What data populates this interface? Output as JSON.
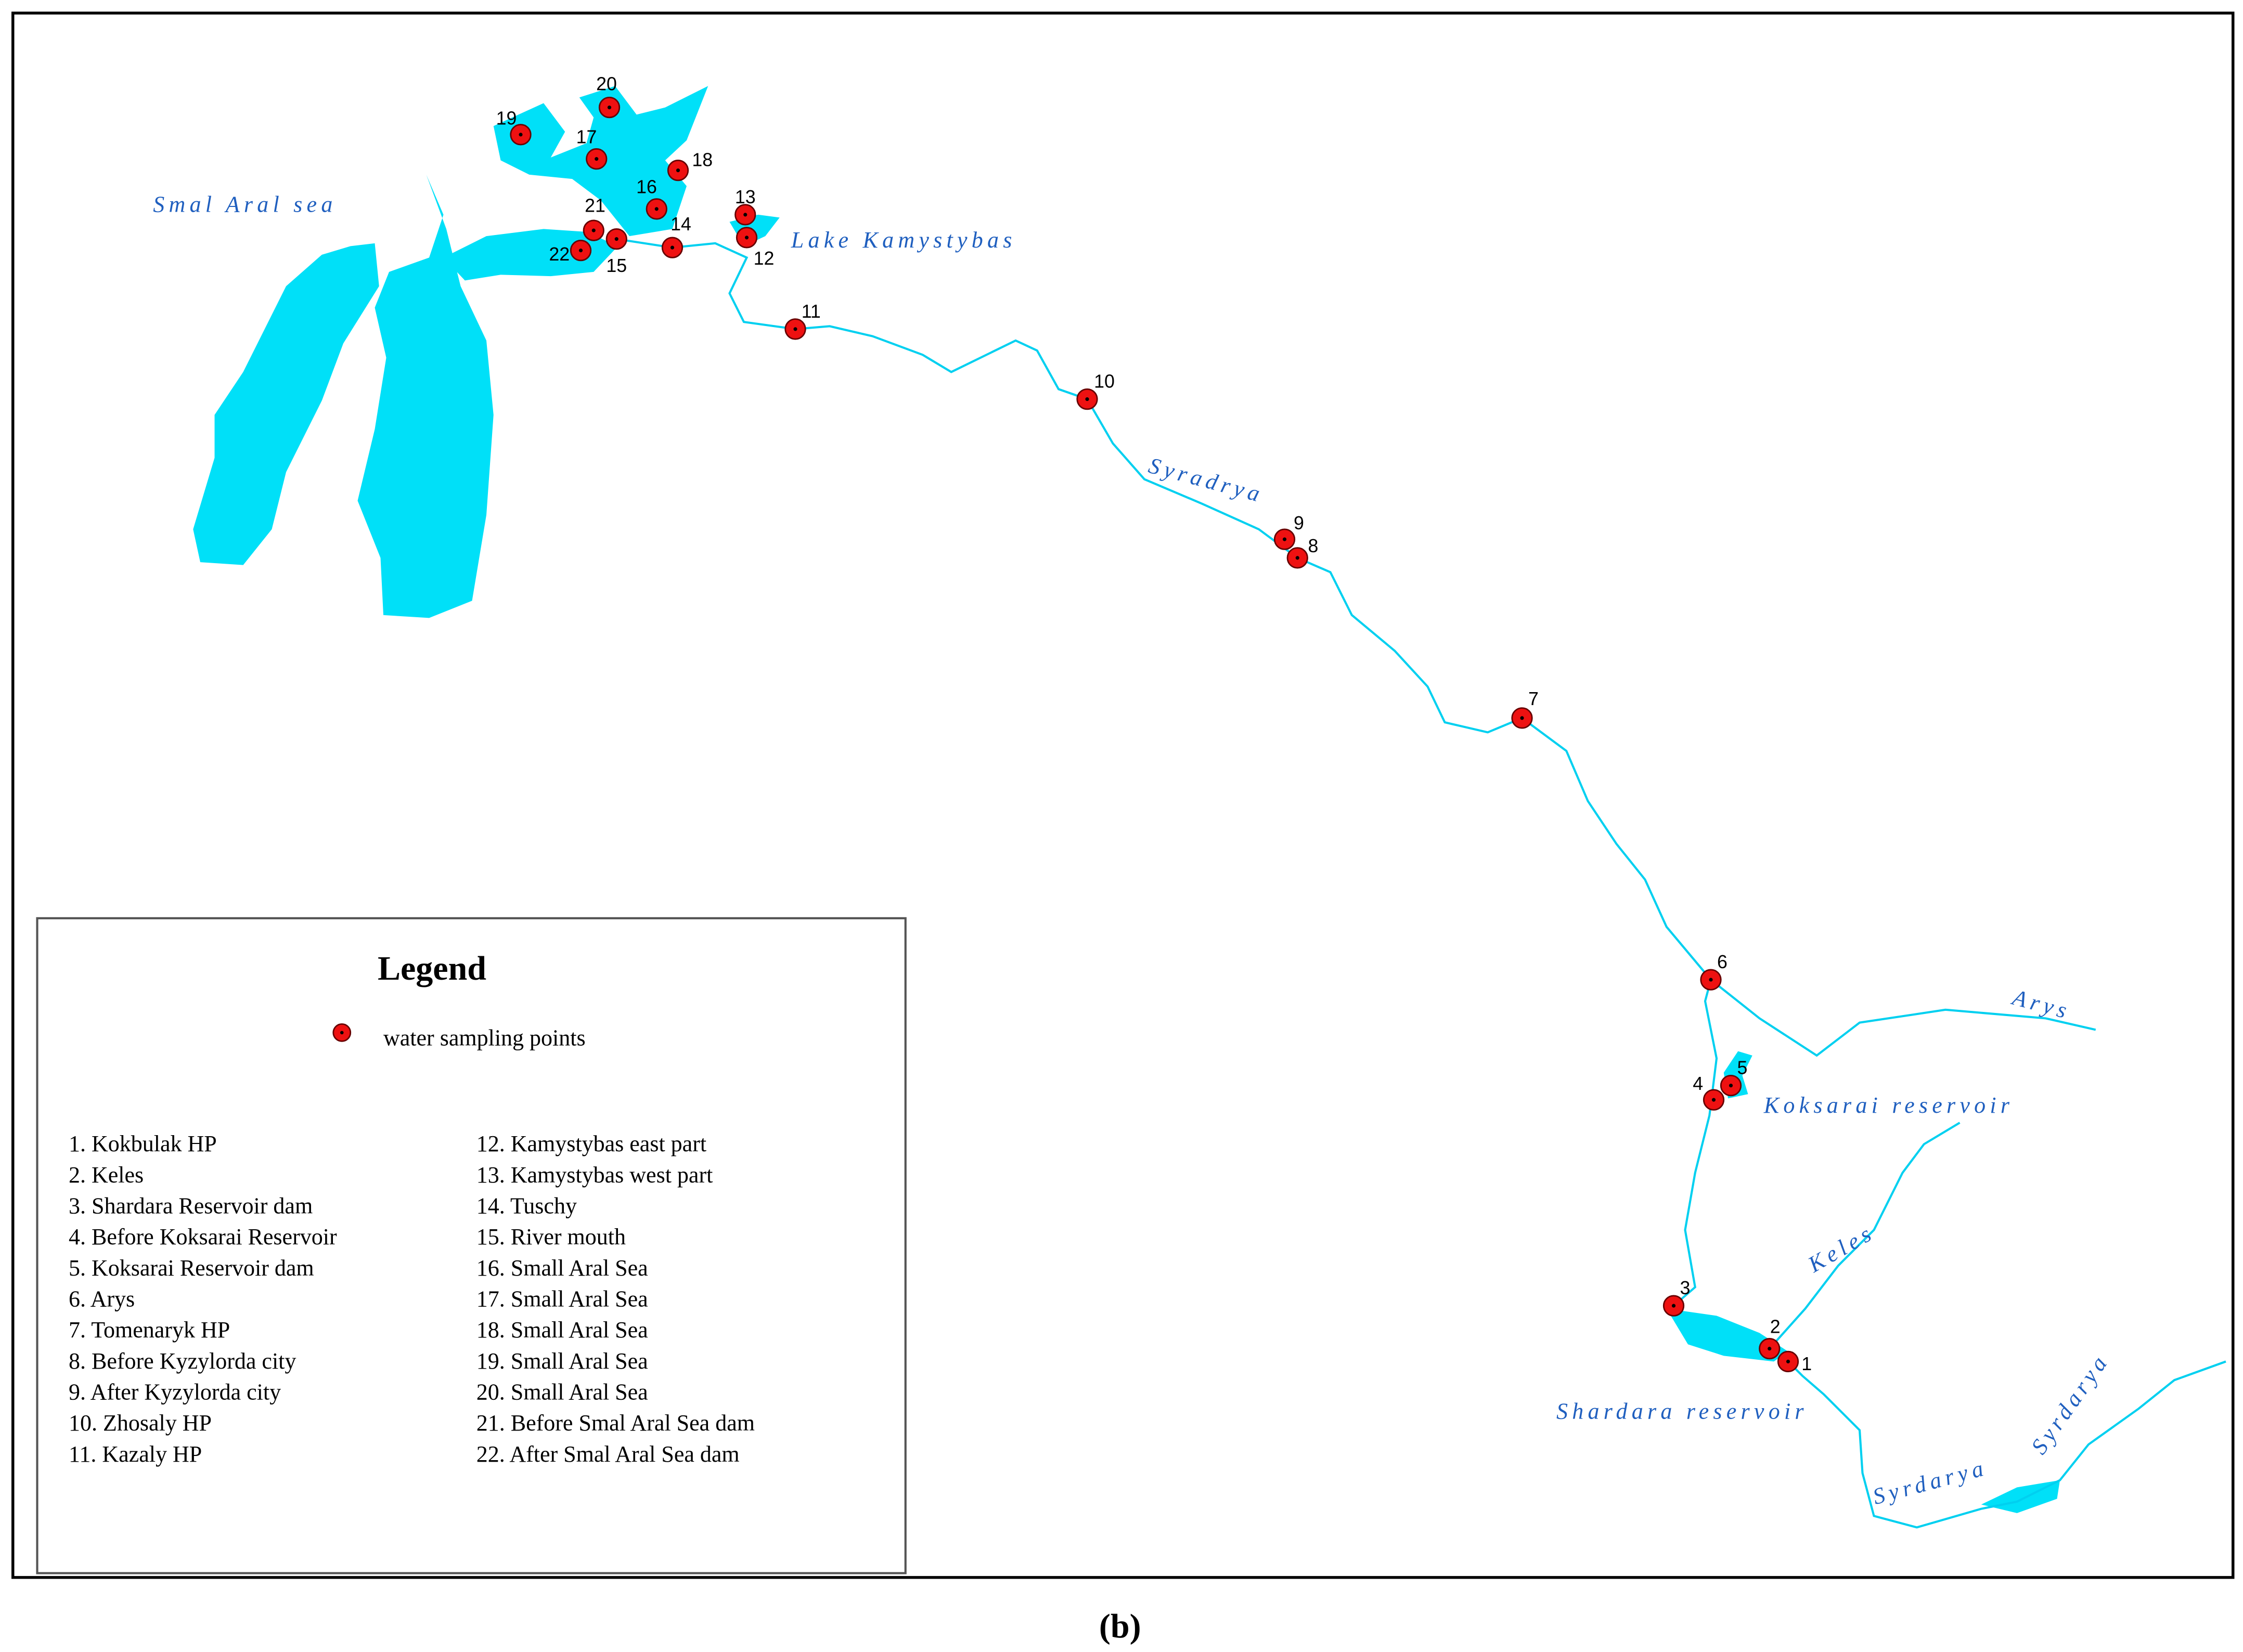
{
  "legend": {
    "title": "Legend",
    "symbol_label": "water sampling points",
    "entries": [
      "1. Kokbulak HP",
      "2. Keles",
      "3. Shardara Reservoir dam",
      "4. Before Koksarai Reservoir",
      "5. Koksarai Reservoir dam",
      "6. Arys",
      "7. Tomenaryk HP",
      "8. Before Kyzylorda city",
      "9. After Kyzylorda city",
      "10. Zhosaly HP",
      "11. Kazaly HP",
      "12. Kamystybas east part",
      "13. Kamystybas west part",
      "14. Tuschy",
      "15. River mouth",
      "16. Small Aral Sea",
      "17. Small Aral Sea",
      "18. Small Aral Sea",
      "19. Small Aral Sea",
      "20. Small Aral Sea",
      "21. Before Smal Aral Sea dam",
      "22. After Smal Aral Sea dam"
    ]
  },
  "points": [
    "1",
    "2",
    "3",
    "4",
    "5",
    "6",
    "7",
    "8",
    "9",
    "10",
    "11",
    "12",
    "13",
    "14",
    "15",
    "16",
    "17",
    "18",
    "19",
    "20",
    "21",
    "22"
  ],
  "map_labels": [
    "Smal Aral sea",
    "Lake Kamystybas",
    "Syradrya",
    "Arys",
    "Koksarai reservoir",
    "Keles",
    "Shardara reservoir",
    "Syrdarya",
    "Syrdarya"
  ],
  "caption": "(b)"
}
